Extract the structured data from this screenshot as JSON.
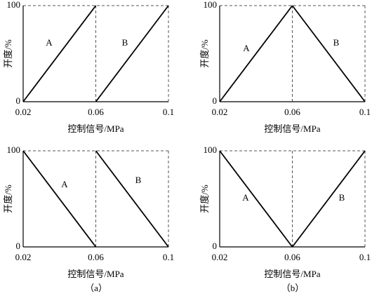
{
  "chart_data": [
    {
      "type": "line",
      "xlabel": "控制信号/MPa",
      "ylabel": "开度/%",
      "xlim": [
        0.02,
        0.1
      ],
      "ylim": [
        0,
        100
      ],
      "xticks": [
        0.02,
        0.06,
        0.1
      ],
      "yticks": [
        0,
        100
      ],
      "grid": true,
      "color": "#000000",
      "series": [
        {
          "name": "A",
          "x": [
            0.02,
            0.06
          ],
          "values": [
            0,
            100
          ]
        },
        {
          "name": "B",
          "x": [
            0.06,
            0.1
          ],
          "values": [
            0,
            100
          ]
        }
      ]
    },
    {
      "type": "line",
      "xlabel": "控制信号/MPa",
      "ylabel": "开度/%",
      "xlim": [
        0.02,
        0.1
      ],
      "ylim": [
        0,
        100
      ],
      "xticks": [
        0.02,
        0.06,
        0.1
      ],
      "yticks": [
        0,
        100
      ],
      "grid": true,
      "color": "#000000",
      "series": [
        {
          "name": "A",
          "x": [
            0.02,
            0.06
          ],
          "values": [
            0,
            100
          ]
        },
        {
          "name": "B",
          "x": [
            0.06,
            0.1
          ],
          "values": [
            100,
            0
          ]
        }
      ]
    },
    {
      "type": "line",
      "xlabel": "控制信号/MPa",
      "ylabel": "开度/%",
      "xlim": [
        0.02,
        0.1
      ],
      "ylim": [
        0,
        100
      ],
      "xticks": [
        0.02,
        0.06,
        0.1
      ],
      "yticks": [
        0,
        100
      ],
      "grid": true,
      "color": "#000000",
      "series": [
        {
          "name": "A",
          "x": [
            0.02,
            0.06
          ],
          "values": [
            100,
            0
          ]
        },
        {
          "name": "B",
          "x": [
            0.06,
            0.1
          ],
          "values": [
            100,
            0
          ]
        }
      ]
    },
    {
      "type": "line",
      "xlabel": "控制信号/MPa",
      "ylabel": "开度/%",
      "xlim": [
        0.02,
        0.1
      ],
      "ylim": [
        0,
        100
      ],
      "xticks": [
        0.02,
        0.06,
        0.1
      ],
      "yticks": [
        0,
        100
      ],
      "grid": true,
      "color": "#000000",
      "series": [
        {
          "name": "A",
          "x": [
            0.02,
            0.06
          ],
          "values": [
            100,
            0
          ]
        },
        {
          "name": "B",
          "x": [
            0.06,
            0.1
          ],
          "values": [
            0,
            100
          ]
        }
      ]
    }
  ],
  "captions": [
    "（a）",
    "（b）"
  ]
}
